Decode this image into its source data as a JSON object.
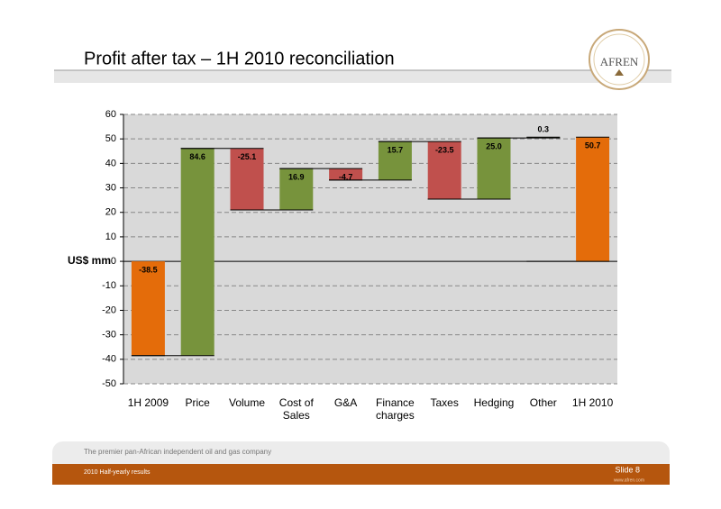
{
  "header": {
    "title": "Profit after tax – 1H 2010 reconciliation",
    "logo": "AFREN"
  },
  "chart_data": {
    "type": "waterfall",
    "y_label": "US$ mm",
    "categories": [
      "1H 2009",
      "Price",
      "Volume",
      "Cost of Sales",
      "G&A",
      "Finance charges",
      "Taxes",
      "Hedging",
      "Other",
      "1H 2010"
    ],
    "values": [
      -38.5,
      84.6,
      -25.1,
      16.9,
      -4.7,
      15.7,
      -23.5,
      25.0,
      0.3,
      50.7
    ],
    "value_labels": [
      "-38.5",
      "84.6",
      "-25.1",
      "16.9",
      "-4.7",
      "15.7",
      "-23.5",
      "25.0",
      "0.3",
      "50.7"
    ],
    "is_total": [
      true,
      false,
      false,
      false,
      false,
      false,
      false,
      false,
      false,
      true
    ],
    "total_color": "#e46c0a",
    "increase_color": "#77933c",
    "decrease_color": "#c0504d",
    "ylim": [
      -50,
      60
    ],
    "yticks": [
      -50,
      -40,
      -30,
      -20,
      -10,
      0,
      10,
      20,
      30,
      40,
      50,
      60
    ],
    "grid": true
  },
  "footer": {
    "tagline": "The premier pan-African independent oil and gas company",
    "report": "2010 Half-yearly results",
    "slide": "Slide 8",
    "website": "www.afren.com"
  }
}
